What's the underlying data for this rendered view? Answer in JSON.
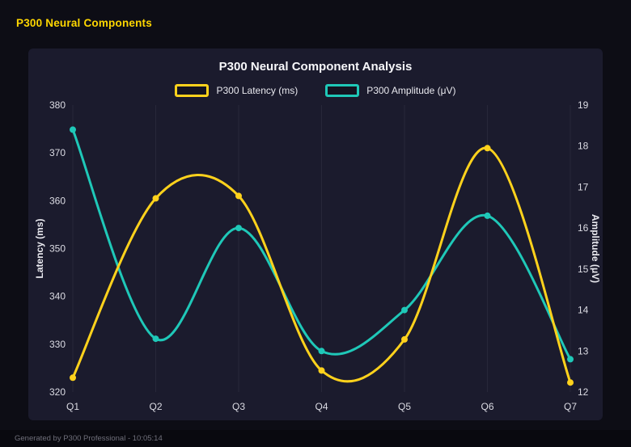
{
  "page": {
    "title": "P300 Neural Components",
    "footer": "Generated by P300 Professional - 10:05:14"
  },
  "chart_data": {
    "type": "line",
    "title": "P300 Neural Component Analysis",
    "categories": [
      "Q1",
      "Q2",
      "Q3",
      "Q4",
      "Q5",
      "Q6",
      "Q7"
    ],
    "series": [
      {
        "name": "P300 Latency (ms)",
        "axis": "left",
        "color": "#ffd21c",
        "values": [
          323,
          360.5,
          361,
          324.5,
          331,
          371,
          322
        ]
      },
      {
        "name": "P300 Amplitude (μV)",
        "axis": "right",
        "color": "#1fc8b8",
        "values": [
          18.4,
          13.3,
          16.0,
          13.0,
          14.0,
          16.3,
          12.8
        ]
      }
    ],
    "left_axis": {
      "label": "Latency (ms)",
      "min": 320,
      "max": 380,
      "step": 10
    },
    "right_axis": {
      "label": "Amplitude (μV)",
      "min": 12,
      "max": 19,
      "step": 1
    },
    "legend_position": "top",
    "grid": "vertical",
    "colors": {
      "background": "#0d0d15",
      "card": "#1b1b2d",
      "grid_line": "#272739",
      "tick_text": "#dcdce4",
      "title_text": "#f7f7fa",
      "accent_title": "#ffd700"
    }
  }
}
